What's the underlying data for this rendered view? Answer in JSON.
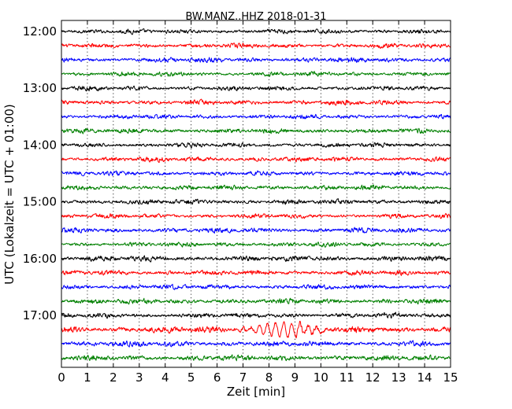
{
  "chart_data": {
    "type": "line",
    "title": "BW.MANZ..HHZ 2018-01-31",
    "xlabel": "Zeit  [min]",
    "ylabel": "UTC (Lokalzeit = UTC + 01:00)",
    "xlim": [
      0,
      15
    ],
    "x_ticks": [
      "0",
      "1",
      "2",
      "3",
      "4",
      "5",
      "6",
      "7",
      "8",
      "9",
      "10",
      "11",
      "12",
      "13",
      "14",
      "15"
    ],
    "y_tick_labels": [
      "12:00",
      "13:00",
      "14:00",
      "15:00",
      "16:00",
      "17:00"
    ],
    "trace_colors": [
      "#000000",
      "#ff0000",
      "#0000ff",
      "#008000"
    ],
    "traces": [
      {
        "start": "12:00",
        "amplitude": 0.18
      },
      {
        "start": "12:15",
        "amplitude": 0.18
      },
      {
        "start": "12:30",
        "amplitude": 0.2
      },
      {
        "start": "12:45",
        "amplitude": 0.18
      },
      {
        "start": "13:00",
        "amplitude": 0.18
      },
      {
        "start": "13:15",
        "amplitude": 0.2
      },
      {
        "start": "13:30",
        "amplitude": 0.18
      },
      {
        "start": "13:45",
        "amplitude": 0.2
      },
      {
        "start": "14:00",
        "amplitude": 0.18
      },
      {
        "start": "14:15",
        "amplitude": 0.2
      },
      {
        "start": "14:30",
        "amplitude": 0.18
      },
      {
        "start": "14:45",
        "amplitude": 0.2
      },
      {
        "start": "15:00",
        "amplitude": 0.2
      },
      {
        "start": "15:15",
        "amplitude": 0.18
      },
      {
        "start": "15:30",
        "amplitude": 0.2
      },
      {
        "start": "15:45",
        "amplitude": 0.18
      },
      {
        "start": "16:00",
        "amplitude": 0.22
      },
      {
        "start": "16:15",
        "amplitude": 0.2
      },
      {
        "start": "16:30",
        "amplitude": 0.2
      },
      {
        "start": "16:45",
        "amplitude": 0.22
      },
      {
        "start": "17:00",
        "amplitude": 0.2
      },
      {
        "start": "17:15",
        "amplitude": 0.25,
        "event": {
          "from_min": 6.3,
          "to_min": 10.0,
          "peak_min": 8.6,
          "amplitude": 0.55
        }
      },
      {
        "start": "17:30",
        "amplitude": 0.22
      },
      {
        "start": "17:45",
        "amplitude": 0.22
      }
    ],
    "grid": true
  }
}
